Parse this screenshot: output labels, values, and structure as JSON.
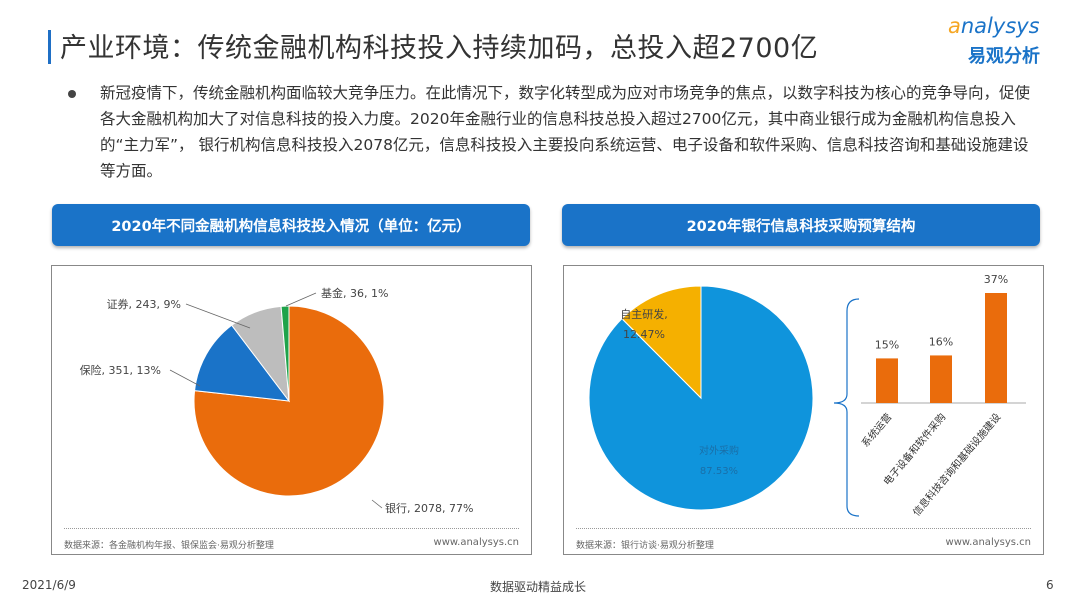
{
  "title": "产业环境：传统金融机构科技投入持续加码，总投入超2700亿",
  "logo": {
    "en_a": "a",
    "en_rest": "nalysys",
    "cn": "易观分析"
  },
  "paragraph": "新冠疫情下，传统金融机构面临较大竞争压力。在此情况下，数字化转型成为应对市场竞争的焦点，以数字科技为核心的竞争导向，促使各大金融机构加大了对信息科技的投入力度。2020年金融行业的信息科技总投入超过2700亿元，其中商业银行成为金融机构信息投入的“主力军”， 银行机构信息科技投入2078亿元，信息科技投入主要投向系统运营、电子设备和软件采购、信息科技咨询和基础设施建设等方面。",
  "left_panel": {
    "banner": "2020年不同金融机构信息科技投入情况（单位：亿元）",
    "source": "数据来源：各金融机构年报、银保监会·易观分析整理",
    "url": "www.analysys.cn"
  },
  "right_panel": {
    "banner": "2020年银行信息科技采购预算结构",
    "source": "数据来源：银行访谈·易观分析整理",
    "url": "www.analysys.cn"
  },
  "chart_data": [
    {
      "type": "pie",
      "slices": [
        {
          "label": "银行",
          "value": 2078,
          "pct": "77%",
          "text": "银行, 2078, 77%",
          "color": "#ea6c0c"
        },
        {
          "label": "保险",
          "value": 351,
          "pct": "13%",
          "text": "保险, 351, 13%",
          "color": "#1a73c8"
        },
        {
          "label": "证券",
          "value": 243,
          "pct": "9%",
          "text": "证券, 243, 9%",
          "color": "#bdbdbd"
        },
        {
          "label": "基金",
          "value": 36,
          "pct": "1%",
          "text": "基金, 36, 1%",
          "color": "#1fa34a"
        }
      ]
    },
    {
      "type": "pie",
      "slices": [
        {
          "label": "对外采购",
          "value": 87.53,
          "text": "87.53%",
          "color": "#0f94dc"
        },
        {
          "label": "自主研发,",
          "value": 12.47,
          "text": "12.47%",
          "color": "#f5b000"
        }
      ]
    },
    {
      "type": "bar",
      "categories": [
        "系统运营",
        "电子设备和软件采购",
        "信息科技咨询和基础设施建设"
      ],
      "values": [
        15,
        16,
        37
      ],
      "labels": [
        "15%",
        "16%",
        "37%"
      ],
      "color": "#ea6c0c"
    }
  ],
  "watermark": "analysys 易观",
  "footer": {
    "date": "2021/6/9",
    "slogan": "数据驱动精益成长",
    "page": "6"
  }
}
